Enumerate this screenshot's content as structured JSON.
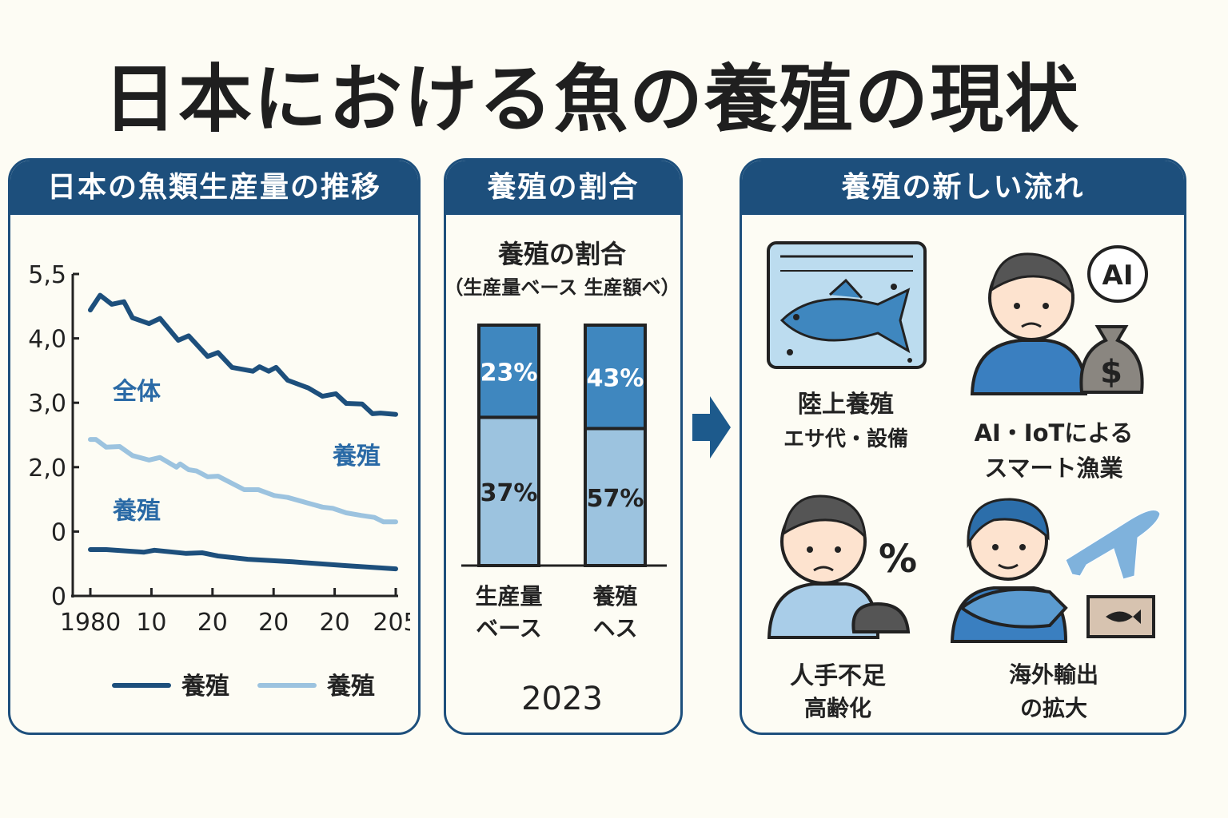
{
  "title": "日本における魚の養殖の現状",
  "panels": {
    "trend": {
      "header": "日本の魚類生産量の推移"
    },
    "ratio": {
      "header": "養殖の割合"
    },
    "new": {
      "header": "養殖の新しい流れ"
    }
  },
  "colors": {
    "header": "#1d4f7c",
    "dark_line": "#1d4f7c",
    "light_line": "#9cc3df",
    "bar_dark": "#3f87bf",
    "bar_light": "#9cc3df",
    "label_blue": "#2a6aa6"
  },
  "chart_data": [
    {
      "type": "line",
      "title": "",
      "y_tick_labels": [
        "0",
        "0",
        "2,0",
        "3,0",
        "4,0",
        "5,5"
      ],
      "x_tick_labels": [
        "1980",
        "10",
        "20",
        "20",
        "20",
        "205"
      ],
      "annotations": [
        "全体",
        "養殖",
        "養殖"
      ],
      "legend": {
        "placement": "bottom",
        "entries": [
          {
            "name": "養殖",
            "color": "#1d4f7c"
          },
          {
            "name": "養殖",
            "color": "#9cc3df"
          }
        ]
      },
      "series": [
        {
          "key": "total",
          "color": "#1d4f7c",
          "x": [
            0,
            0.16,
            0.35,
            0.55,
            0.69,
            0.96,
            1.14,
            1.44,
            1.61,
            1.92,
            2.09,
            2.32,
            2.66,
            2.77,
            2.92,
            3.04,
            3.23,
            3.57,
            3.8,
            4.02,
            4.19,
            4.45,
            4.62,
            4.75,
            5.0
          ],
          "y": [
            4.44,
            4.67,
            4.53,
            4.57,
            4.32,
            4.23,
            4.31,
            3.97,
            4.04,
            3.72,
            3.78,
            3.55,
            3.49,
            3.56,
            3.49,
            3.55,
            3.35,
            3.23,
            3.1,
            3.14,
            2.99,
            2.98,
            2.83,
            2.84,
            2.82
          ]
        },
        {
          "key": "light",
          "color": "#9cc3df",
          "x": [
            0,
            0.09,
            0.26,
            0.48,
            0.69,
            0.96,
            1.14,
            1.41,
            1.47,
            1.61,
            1.74,
            1.92,
            2.09,
            2.52,
            2.75,
            3.01,
            3.23,
            3.53,
            3.8,
            3.97,
            4.19,
            4.44,
            4.65,
            4.8,
            5.0
          ],
          "y": [
            2.43,
            2.43,
            2.31,
            2.32,
            2.18,
            2.11,
            2.15,
            2.0,
            2.05,
            1.96,
            1.94,
            1.85,
            1.86,
            1.65,
            1.65,
            1.56,
            1.53,
            1.45,
            1.38,
            1.36,
            1.29,
            1.25,
            1.22,
            1.15,
            1.15
          ]
        },
        {
          "key": "bottom",
          "color": "#1d4f7c",
          "x": [
            0,
            0.26,
            0.88,
            1.05,
            1.57,
            1.83,
            2.09,
            2.58,
            3.31,
            4.19,
            5.0
          ],
          "y": [
            0.72,
            0.72,
            0.68,
            0.71,
            0.66,
            0.67,
            0.62,
            0.57,
            0.53,
            0.47,
            0.42
          ]
        }
      ],
      "xlim": [
        0,
        5
      ],
      "ylim": [
        0,
        5
      ],
      "grid": false
    },
    {
      "type": "bar",
      "stacked": true,
      "title": "養殖の割合",
      "subtitle": "（生産量ベース 生産額ベ）",
      "categories": [
        [
          "生産量",
          "ベース"
        ],
        [
          "養殖",
          "ヘス"
        ]
      ],
      "series": [
        {
          "key": "bottom",
          "color": "#9cc3df",
          "values": [
            37,
            57
          ],
          "labels": [
            "37%",
            "57%"
          ]
        },
        {
          "key": "top",
          "color": "#3f87bf",
          "values": [
            23,
            43
          ],
          "labels": [
            "23%",
            "43%"
          ]
        }
      ],
      "xlabel": "2023"
    }
  ],
  "new_trends": [
    {
      "icon": "fish-tank-icon",
      "line1": "陸上養殖",
      "line2": "エサ代・設備"
    },
    {
      "icon": "worried-person-ai-icon",
      "line1": "AI・IoTによる",
      "line2": "スマート漁業"
    },
    {
      "icon": "worried-person-percent-icon",
      "line1": "人手不足",
      "line2": "高齢化"
    },
    {
      "icon": "person-fish-airplane-icon",
      "line1": "海外輸出",
      "line2": "の拡大"
    }
  ],
  "icon_text": {
    "ai": "AI",
    "dollar": "$",
    "percent": "%"
  }
}
